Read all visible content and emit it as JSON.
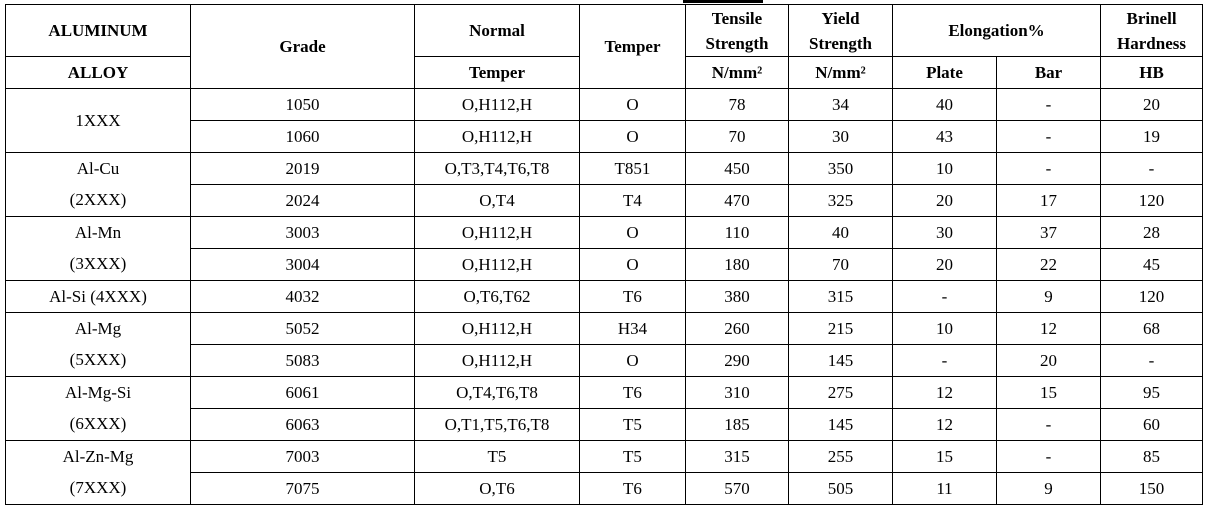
{
  "header": {
    "alloy_top": "ALUMINUM",
    "alloy_bottom": "ALLOY",
    "grade": "Grade",
    "normal_top": "Normal",
    "normal_bottom": "Temper",
    "temper": "Temper",
    "tensile_line1": "Tensile",
    "tensile_line2": "Strength",
    "tensile_unit": "N/mm²",
    "yield_line1": "Yield",
    "yield_line2": "Strength",
    "yield_unit": "N/mm²",
    "elongation": "Elongation%",
    "plate": "Plate",
    "bar": "Bar",
    "brinell_line1": "Brinell",
    "brinell_line2": "Hardness",
    "brinell_unit": "HB"
  },
  "groups": [
    {
      "label_top": "1XXX",
      "label_bottom": ""
    },
    {
      "label_top": "Al-Cu",
      "label_bottom": "(2XXX)"
    },
    {
      "label_top": "Al-Mn",
      "label_bottom": "(3XXX)"
    },
    {
      "label_top": "Al-Si (4XXX)",
      "label_bottom": ""
    },
    {
      "label_top": "Al-Mg",
      "label_bottom": "(5XXX)"
    },
    {
      "label_top": "Al-Mg-Si",
      "label_bottom": "(6XXX)"
    },
    {
      "label_top": "Al-Zn-Mg",
      "label_bottom": "(7XXX)"
    }
  ],
  "rows": [
    {
      "grade": "1050",
      "normal": "O,H112,H",
      "temper": "O",
      "tensile": "78",
      "yield": "34",
      "plate": "40",
      "bar": "-",
      "hb": "20"
    },
    {
      "grade": "1060",
      "normal": "O,H112,H",
      "temper": "O",
      "tensile": "70",
      "yield": "30",
      "plate": "43",
      "bar": "-",
      "hb": "19"
    },
    {
      "grade": "2019",
      "normal": "O,T3,T4,T6,T8",
      "temper": "T851",
      "tensile": "450",
      "yield": "350",
      "plate": "10",
      "bar": "-",
      "hb": "-"
    },
    {
      "grade": "2024",
      "normal": "O,T4",
      "temper": "T4",
      "tensile": "470",
      "yield": "325",
      "plate": "20",
      "bar": "17",
      "hb": "120"
    },
    {
      "grade": "3003",
      "normal": "O,H112,H",
      "temper": "O",
      "tensile": "110",
      "yield": "40",
      "plate": "30",
      "bar": "37",
      "hb": "28"
    },
    {
      "grade": "3004",
      "normal": "O,H112,H",
      "temper": "O",
      "tensile": "180",
      "yield": "70",
      "plate": "20",
      "bar": "22",
      "hb": "45"
    },
    {
      "grade": "4032",
      "normal": "O,T6,T62",
      "temper": "T6",
      "tensile": "380",
      "yield": "315",
      "plate": "-",
      "bar": "9",
      "hb": "120"
    },
    {
      "grade": "5052",
      "normal": "O,H112,H",
      "temper": "H34",
      "tensile": "260",
      "yield": "215",
      "plate": "10",
      "bar": "12",
      "hb": "68"
    },
    {
      "grade": "5083",
      "normal": "O,H112,H",
      "temper": "O",
      "tensile": "290",
      "yield": "145",
      "plate": "-",
      "bar": "20",
      "hb": "-"
    },
    {
      "grade": "6061",
      "normal": "O,T4,T6,T8",
      "temper": "T6",
      "tensile": "310",
      "yield": "275",
      "plate": "12",
      "bar": "15",
      "hb": "95"
    },
    {
      "grade": "6063",
      "normal": "O,T1,T5,T6,T8",
      "temper": "T5",
      "tensile": "185",
      "yield": "145",
      "plate": "12",
      "bar": "-",
      "hb": "60"
    },
    {
      "grade": "7003",
      "normal": "T5",
      "temper": "T5",
      "tensile": "315",
      "yield": "255",
      "plate": "15",
      "bar": "-",
      "hb": "85"
    },
    {
      "grade": "7075",
      "normal": "O,T6",
      "temper": "T6",
      "tensile": "570",
      "yield": "505",
      "plate": "11",
      "bar": "9",
      "hb": "150"
    }
  ]
}
